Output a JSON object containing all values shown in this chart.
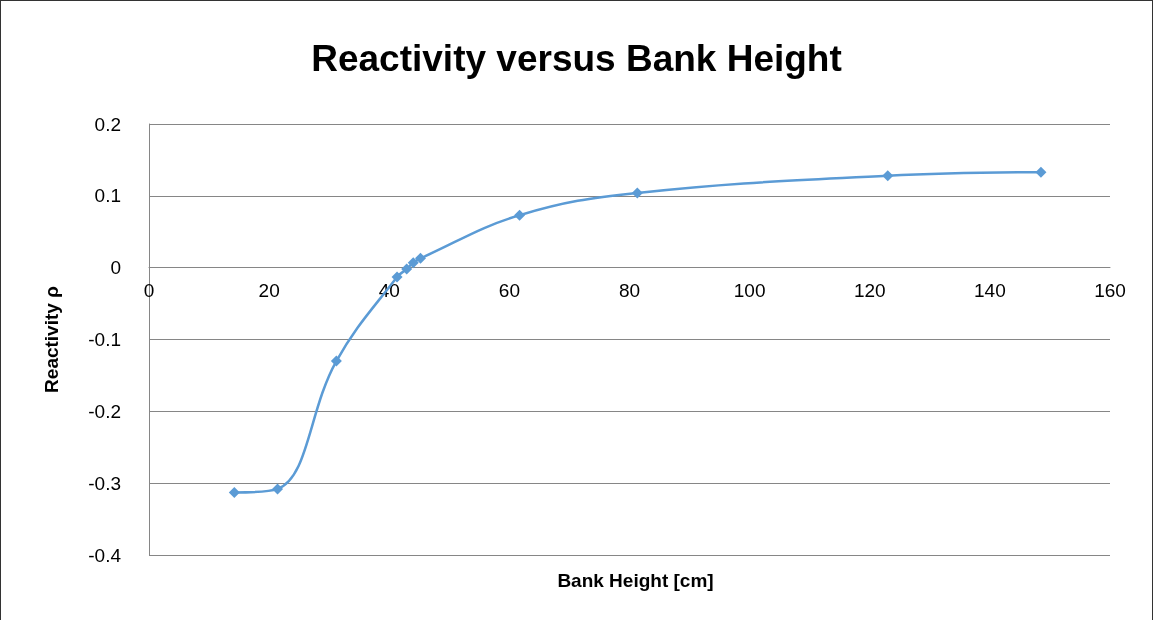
{
  "chart_data": {
    "type": "line",
    "title": "Reactivity versus Bank Height",
    "xlabel": "Bank Height [cm]",
    "ylabel": "Reactivity ρ",
    "series": [
      {
        "color": "#5b9bd5",
        "x": [
          14.2,
          21.4,
          31.2,
          41.3,
          42.9,
          44.0,
          45.2,
          61.7,
          81.3,
          123,
          148.5
        ],
        "values": [
          -0.313,
          -0.308,
          -0.13,
          -0.013,
          -0.002,
          0.007,
          0.013,
          0.073,
          0.104,
          0.128,
          0.133
        ]
      }
    ],
    "xlim": [
      0,
      160
    ],
    "xticks": [
      0,
      20,
      40,
      60,
      80,
      100,
      120,
      140,
      160
    ],
    "ylim": [
      -0.4,
      0.2
    ],
    "yticks": [
      -0.4,
      -0.3,
      -0.2,
      -0.1,
      0,
      0.1,
      0.2
    ],
    "grid": "y",
    "marker": "diamond",
    "line_style": "solid"
  }
}
